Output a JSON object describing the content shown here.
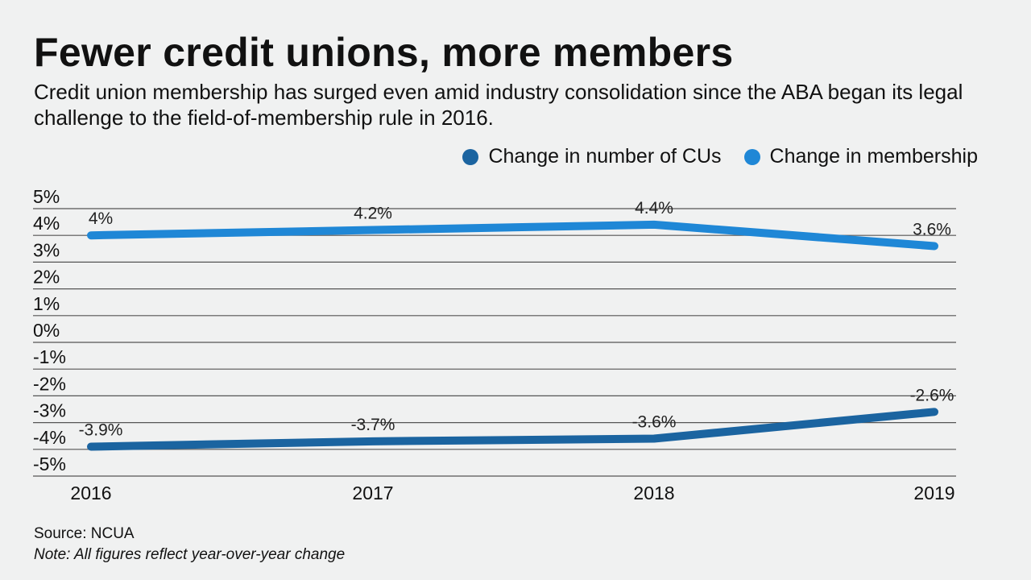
{
  "chart_data": {
    "type": "line",
    "title": "Fewer credit unions, more members",
    "subtitle": "Credit union membership has surged even amid industry consolidation since the ABA began its legal challenge to the field-of-membership rule in 2016.",
    "x": [
      "2016",
      "2017",
      "2018",
      "2019"
    ],
    "series": [
      {
        "name": "Change in number of CUs",
        "color": "#1b64a0",
        "values": [
          -3.9,
          -3.7,
          -3.6,
          -2.6
        ],
        "labels": [
          "-3.9%",
          "-3.7%",
          "-3.6%",
          "-2.6%"
        ]
      },
      {
        "name": "Change in membership",
        "color": "#1f87d6",
        "values": [
          4.0,
          4.2,
          4.4,
          3.6
        ],
        "labels": [
          "4%",
          "4.2%",
          "4.4%",
          "3.6%"
        ]
      }
    ],
    "ylim": [
      -5,
      5
    ],
    "yticks": [
      "5%",
      "4%",
      "3%",
      "2%",
      "1%",
      "0%",
      "-1%",
      "-2%",
      "-3%",
      "-4%",
      "-5%"
    ],
    "legend": "top-right",
    "grid": true
  },
  "footer": {
    "source": "Source: NCUA",
    "note": "Note: All figures reflect year-over-year change"
  }
}
